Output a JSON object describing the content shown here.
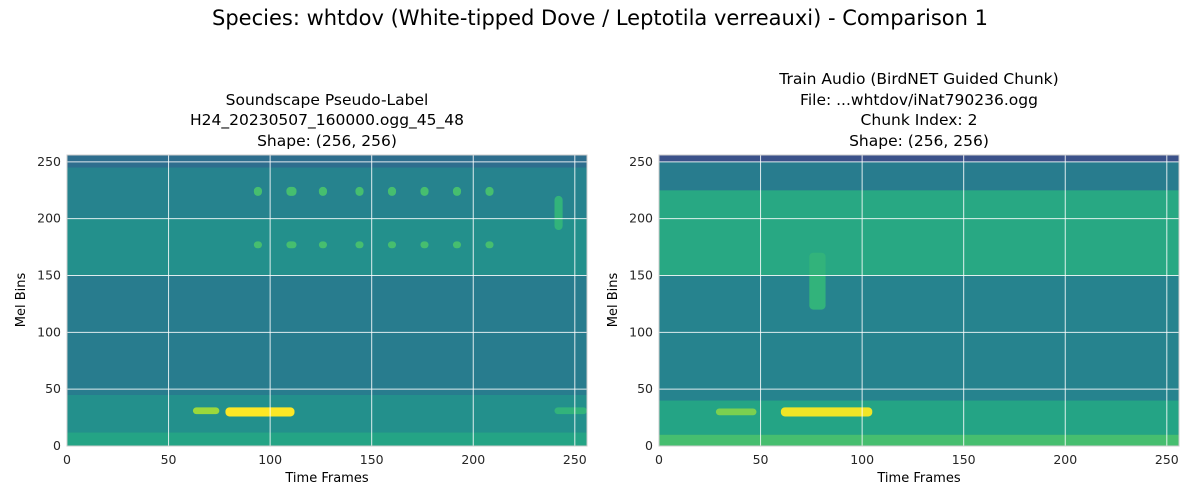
{
  "figure": {
    "suptitle": "Species: whtdov (White-tipped Dove / Leptotila verreauxi) - Comparison 1"
  },
  "chart_data": [
    {
      "type": "heatmap",
      "title_lines": [
        "Soundscape Pseudo-Label",
        "H24_20230507_160000.ogg_45_48",
        "Shape: (256, 256)"
      ],
      "xlabel": "Time Frames",
      "ylabel": "Mel Bins",
      "xlim": [
        0,
        256
      ],
      "ylim": [
        0,
        256
      ],
      "xticks": [
        0,
        50,
        100,
        150,
        200,
        250
      ],
      "yticks": [
        0,
        50,
        100,
        150,
        200,
        250
      ],
      "grid": true,
      "colormap": "viridis",
      "base_level": 0.42,
      "bands": [
        {
          "y": [
            0,
            12
          ],
          "level": 0.58
        },
        {
          "y": [
            12,
            45
          ],
          "level": 0.5
        },
        {
          "y": [
            45,
            150
          ],
          "level": 0.42
        },
        {
          "y": [
            150,
            200
          ],
          "level": 0.5
        },
        {
          "y": [
            200,
            245
          ],
          "level": 0.45
        },
        {
          "y": [
            245,
            256
          ],
          "level": 0.36
        }
      ],
      "hot_spots": [
        {
          "x": [
            62,
            75
          ],
          "y": [
            28,
            34
          ],
          "level": 0.85
        },
        {
          "x": [
            78,
            112
          ],
          "y": [
            26,
            34
          ],
          "level": 1.0
        },
        {
          "x": [
            240,
            256
          ],
          "y": [
            28,
            34
          ],
          "level": 0.65
        },
        {
          "x": [
            92,
            96
          ],
          "y": [
            174,
            180
          ],
          "level": 0.7
        },
        {
          "x": [
            108,
            113
          ],
          "y": [
            174,
            180
          ],
          "level": 0.7
        },
        {
          "x": [
            124,
            128
          ],
          "y": [
            174,
            180
          ],
          "level": 0.7
        },
        {
          "x": [
            142,
            146
          ],
          "y": [
            174,
            180
          ],
          "level": 0.7
        },
        {
          "x": [
            158,
            162
          ],
          "y": [
            174,
            180
          ],
          "level": 0.7
        },
        {
          "x": [
            174,
            178
          ],
          "y": [
            174,
            180
          ],
          "level": 0.7
        },
        {
          "x": [
            190,
            194
          ],
          "y": [
            174,
            180
          ],
          "level": 0.7
        },
        {
          "x": [
            206,
            210
          ],
          "y": [
            174,
            180
          ],
          "level": 0.7
        },
        {
          "x": [
            92,
            96
          ],
          "y": [
            220,
            228
          ],
          "level": 0.7
        },
        {
          "x": [
            108,
            113
          ],
          "y": [
            220,
            228
          ],
          "level": 0.7
        },
        {
          "x": [
            124,
            128
          ],
          "y": [
            220,
            228
          ],
          "level": 0.7
        },
        {
          "x": [
            142,
            146
          ],
          "y": [
            220,
            228
          ],
          "level": 0.7
        },
        {
          "x": [
            158,
            162
          ],
          "y": [
            220,
            228
          ],
          "level": 0.7
        },
        {
          "x": [
            174,
            178
          ],
          "y": [
            220,
            228
          ],
          "level": 0.7
        },
        {
          "x": [
            190,
            194
          ],
          "y": [
            220,
            228
          ],
          "level": 0.7
        },
        {
          "x": [
            206,
            210
          ],
          "y": [
            220,
            228
          ],
          "level": 0.7
        },
        {
          "x": [
            240,
            244
          ],
          "y": [
            190,
            220
          ],
          "level": 0.65
        }
      ]
    },
    {
      "type": "heatmap",
      "title_lines": [
        "Train Audio (BirdNET Guided Chunk)",
        "File: ...whtdov/iNat790236.ogg",
        "Chunk Index: 2",
        "Shape: (256, 256)"
      ],
      "xlabel": "Time Frames",
      "ylabel": "Mel Bins",
      "xlim": [
        0,
        256
      ],
      "ylim": [
        0,
        256
      ],
      "xticks": [
        0,
        50,
        100,
        150,
        200,
        250
      ],
      "yticks": [
        0,
        50,
        100,
        150,
        200,
        250
      ],
      "grid": true,
      "colormap": "viridis",
      "base_level": 0.45,
      "bands": [
        {
          "y": [
            0,
            10
          ],
          "level": 0.7
        },
        {
          "y": [
            10,
            40
          ],
          "level": 0.58
        },
        {
          "y": [
            40,
            150
          ],
          "level": 0.45
        },
        {
          "y": [
            150,
            225
          ],
          "level": 0.6
        },
        {
          "y": [
            225,
            250
          ],
          "level": 0.42
        },
        {
          "y": [
            250,
            256
          ],
          "level": 0.25
        }
      ],
      "hot_spots": [
        {
          "x": [
            28,
            48
          ],
          "y": [
            27,
            33
          ],
          "level": 0.8
        },
        {
          "x": [
            60,
            105
          ],
          "y": [
            26,
            34
          ],
          "level": 0.98
        },
        {
          "x": [
            74,
            82
          ],
          "y": [
            120,
            170
          ],
          "level": 0.65
        }
      ]
    }
  ]
}
